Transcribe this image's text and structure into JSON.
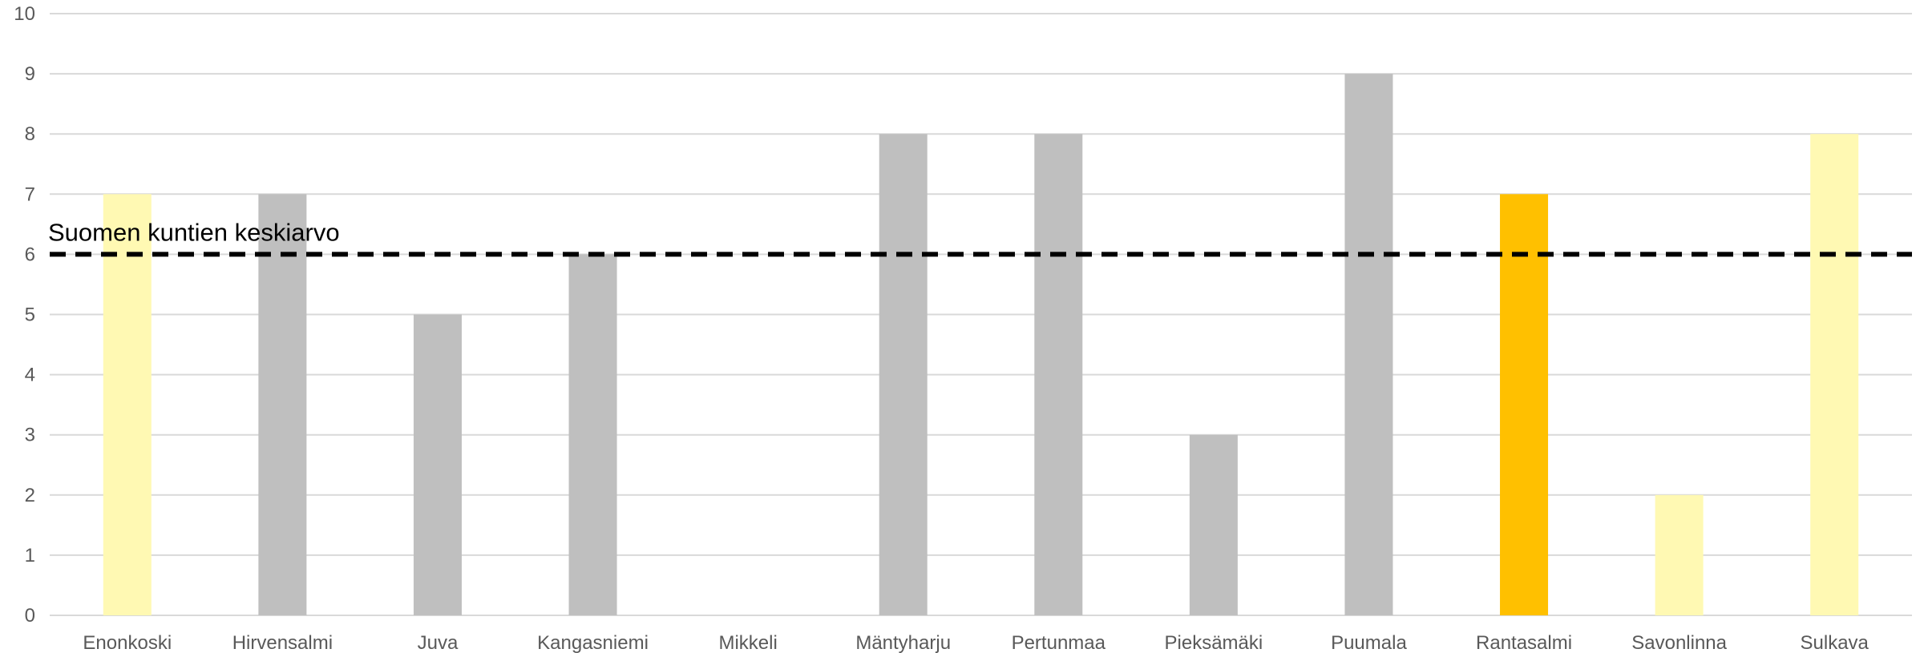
{
  "chart_data": {
    "type": "bar",
    "categories": [
      "Enonkoski",
      "Hirvensalmi",
      "Juva",
      "Kangasniemi",
      "Mikkeli",
      "Mäntyharju",
      "Pertunmaa",
      "Pieksämäki",
      "Puumala",
      "Rantasalmi",
      "Savonlinna",
      "Sulkava"
    ],
    "values": [
      7,
      7,
      5,
      6,
      null,
      8,
      8,
      3,
      9,
      7,
      2,
      8
    ],
    "bar_colors": [
      "#FFF9B3",
      "#BFBFBF",
      "#BFBFBF",
      "#BFBFBF",
      "#BFBFBF",
      "#BFBFBF",
      "#BFBFBF",
      "#BFBFBF",
      "#BFBFBF",
      "#FFC000",
      "#FFF9B3",
      "#FFF9B3"
    ],
    "ylim": [
      0,
      10
    ],
    "yticks": [
      "0",
      "1",
      "2",
      "3",
      "4",
      "5",
      "6",
      "7",
      "8",
      "9",
      "10"
    ],
    "grid": true,
    "reference_line": {
      "value": 6,
      "label": "Suomen kuntien keskiarvo",
      "style": "dashed",
      "color": "#000000"
    },
    "title": "",
    "xlabel": "",
    "ylabel": ""
  }
}
